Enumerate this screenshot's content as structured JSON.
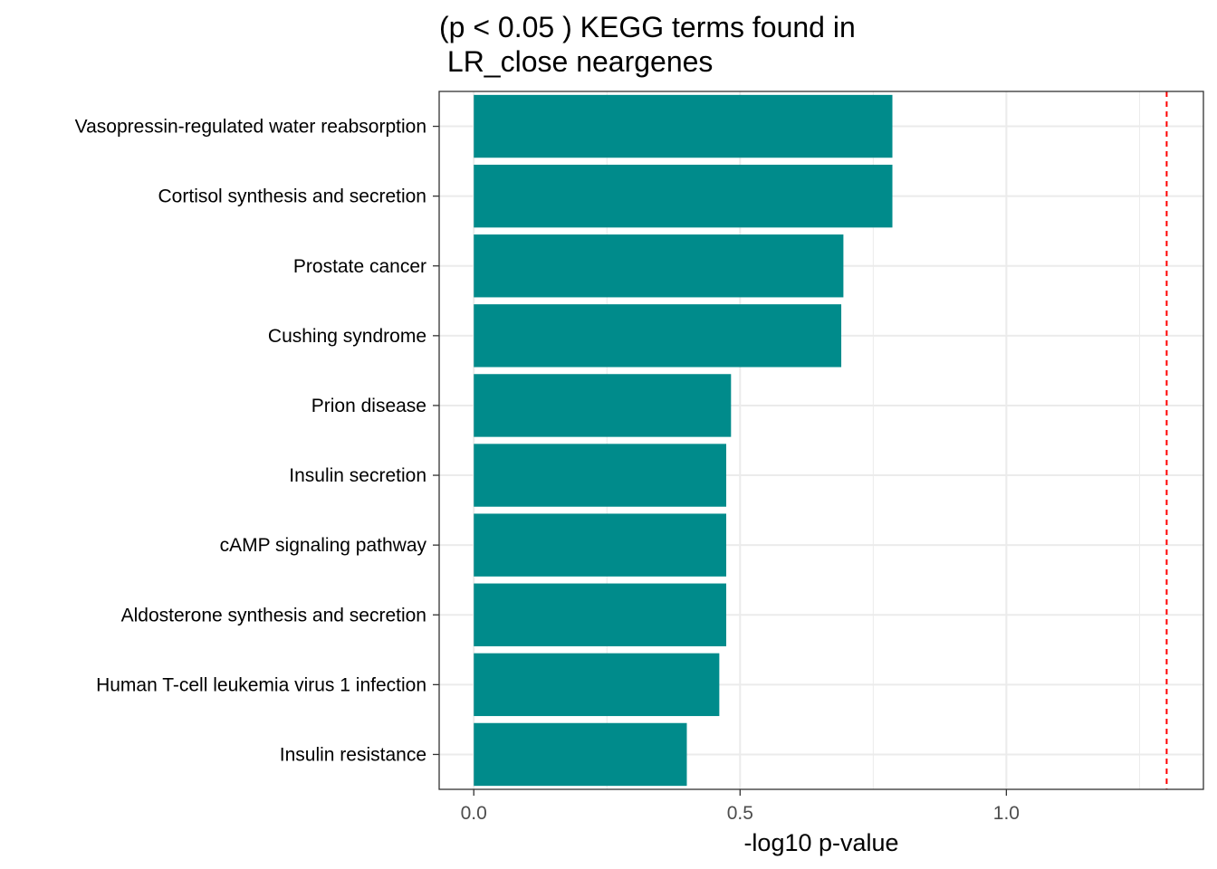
{
  "chart_data": {
    "type": "bar",
    "orientation": "horizontal",
    "title_lines": [
      "(p < 0.05 ) KEGG terms found in",
      " LR_close neargenes"
    ],
    "xlabel": "-log10 p-value",
    "ylabel": "",
    "xlim": [
      -0.065,
      1.37
    ],
    "xticks": [
      0.0,
      0.5,
      1.0
    ],
    "xtick_labels": [
      "0.0",
      "0.5",
      "1.0"
    ],
    "grid": true,
    "bar_color": "#008b8b",
    "reference_line": {
      "value": 1.301,
      "color": "#ff0000",
      "style": "dashed"
    },
    "categories": [
      "Vasopressin-regulated water reabsorption",
      "Cortisol synthesis and secretion",
      "Prostate cancer",
      "Cushing syndrome",
      "Prion disease",
      "Insulin secretion",
      "cAMP signaling pathway",
      "Aldosterone synthesis and secretion",
      "Human T-cell leukemia virus 1 infection",
      "Insulin resistance"
    ],
    "values": [
      0.786,
      0.786,
      0.694,
      0.69,
      0.483,
      0.474,
      0.474,
      0.474,
      0.461,
      0.4
    ]
  }
}
